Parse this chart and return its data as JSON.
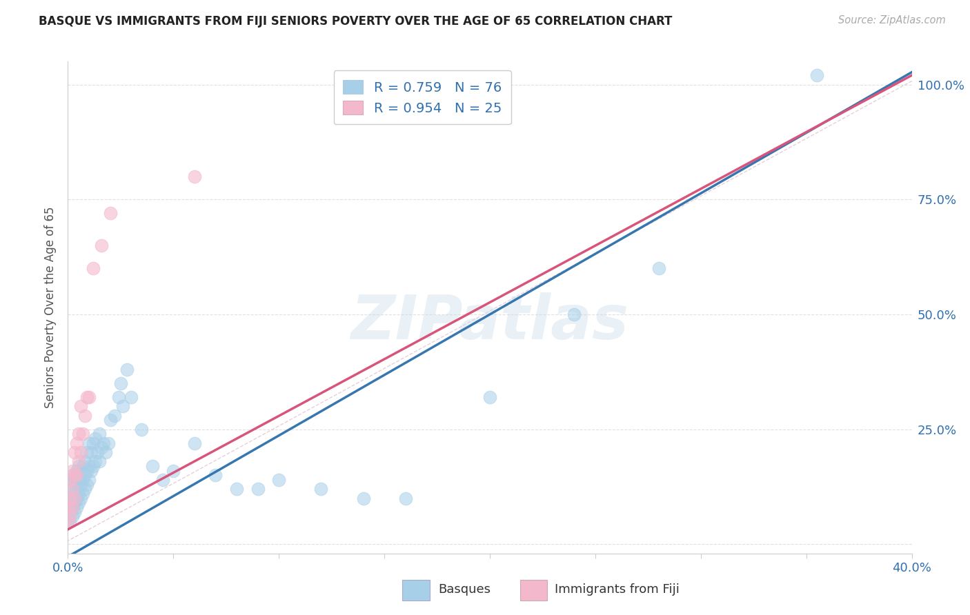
{
  "title": "BASQUE VS IMMIGRANTS FROM FIJI SENIORS POVERTY OVER THE AGE OF 65 CORRELATION CHART",
  "source": "Source: ZipAtlas.com",
  "ylabel": "Seniors Poverty Over the Age of 65",
  "watermark": "ZIPatlas",
  "xlim": [
    0.0,
    0.4
  ],
  "ylim": [
    -0.02,
    1.05
  ],
  "blue_color": "#a8cfe8",
  "pink_color": "#f4b8cc",
  "blue_line_color": "#3777b0",
  "pink_line_color": "#d9547a",
  "ref_line_color": "#d0d0d0",
  "legend_text_color": "#3070b0",
  "title_color": "#222222",
  "source_color": "#aaaaaa",
  "grid_color": "#e0e0e0",
  "blue_r": "R = 0.759",
  "blue_n": "N = 76",
  "pink_r": "R = 0.954",
  "pink_n": "N = 25",
  "basque_x": [
    0.0,
    0.0,
    0.0,
    0.001,
    0.001,
    0.001,
    0.001,
    0.001,
    0.002,
    0.002,
    0.002,
    0.002,
    0.002,
    0.003,
    0.003,
    0.003,
    0.003,
    0.004,
    0.004,
    0.004,
    0.004,
    0.005,
    0.005,
    0.005,
    0.005,
    0.006,
    0.006,
    0.006,
    0.007,
    0.007,
    0.007,
    0.008,
    0.008,
    0.008,
    0.009,
    0.009,
    0.009,
    0.01,
    0.01,
    0.01,
    0.011,
    0.011,
    0.012,
    0.012,
    0.013,
    0.013,
    0.014,
    0.015,
    0.015,
    0.016,
    0.017,
    0.018,
    0.019,
    0.02,
    0.022,
    0.024,
    0.025,
    0.026,
    0.028,
    0.03,
    0.035,
    0.04,
    0.045,
    0.05,
    0.06,
    0.07,
    0.08,
    0.09,
    0.1,
    0.12,
    0.14,
    0.16,
    0.2,
    0.24,
    0.28,
    0.355
  ],
  "basque_y": [
    0.05,
    0.07,
    0.09,
    0.05,
    0.07,
    0.08,
    0.1,
    0.13,
    0.06,
    0.08,
    0.1,
    0.12,
    0.15,
    0.07,
    0.09,
    0.11,
    0.14,
    0.08,
    0.1,
    0.13,
    0.16,
    0.09,
    0.11,
    0.14,
    0.17,
    0.1,
    0.13,
    0.16,
    0.11,
    0.14,
    0.17,
    0.12,
    0.15,
    0.18,
    0.13,
    0.16,
    0.2,
    0.14,
    0.17,
    0.22,
    0.16,
    0.2,
    0.17,
    0.22,
    0.18,
    0.23,
    0.2,
    0.18,
    0.24,
    0.21,
    0.22,
    0.2,
    0.22,
    0.27,
    0.28,
    0.32,
    0.35,
    0.3,
    0.38,
    0.32,
    0.25,
    0.17,
    0.14,
    0.16,
    0.22,
    0.15,
    0.12,
    0.12,
    0.14,
    0.12,
    0.1,
    0.1,
    0.32,
    0.5,
    0.6,
    1.02
  ],
  "fiji_x": [
    0.0,
    0.0,
    0.001,
    0.001,
    0.001,
    0.002,
    0.002,
    0.002,
    0.003,
    0.003,
    0.003,
    0.004,
    0.004,
    0.005,
    0.005,
    0.006,
    0.006,
    0.007,
    0.008,
    0.009,
    0.01,
    0.012,
    0.016,
    0.02,
    0.06
  ],
  "fiji_y": [
    0.05,
    0.08,
    0.06,
    0.1,
    0.14,
    0.08,
    0.12,
    0.16,
    0.1,
    0.15,
    0.2,
    0.15,
    0.22,
    0.18,
    0.24,
    0.2,
    0.3,
    0.24,
    0.28,
    0.32,
    0.32,
    0.6,
    0.65,
    0.72,
    0.8
  ],
  "blue_line_x": [
    -0.005,
    0.405
  ],
  "blue_line_y": [
    -0.04,
    1.04
  ],
  "pink_line_x": [
    -0.005,
    0.4
  ],
  "pink_line_y": [
    0.02,
    1.02
  ],
  "ref_line_x": [
    -0.005,
    0.405
  ],
  "ref_line_y": [
    -0.005,
    1.02
  ],
  "xticks": [
    0.0,
    0.05,
    0.1,
    0.15,
    0.2,
    0.25,
    0.3,
    0.35,
    0.4
  ],
  "yticks": [
    0.0,
    0.25,
    0.5,
    0.75,
    1.0
  ],
  "ytick_labels_right": [
    "",
    "25.0%",
    "50.0%",
    "75.0%",
    "100.0%"
  ]
}
